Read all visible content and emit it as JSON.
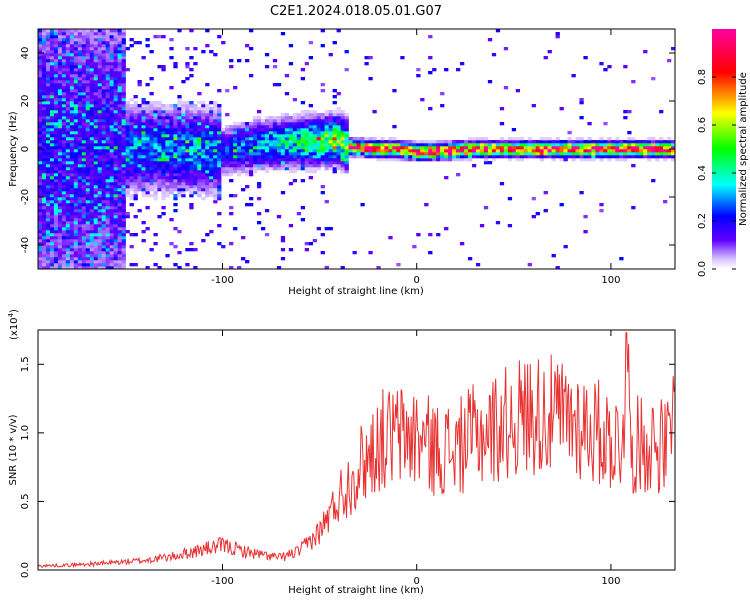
{
  "title": "C2E1.2024.018.05.01.G07",
  "chart_data": [
    {
      "type": "heatmap",
      "xlabel": "Height of straight line (km)",
      "ylabel": "Frequency (Hz)",
      "xlim": [
        -195,
        133
      ],
      "ylim": [
        -50,
        50
      ],
      "xticks": [
        -100,
        0,
        100
      ],
      "yticks": [
        -40,
        -20,
        0,
        20,
        40
      ],
      "colorbar": {
        "label": "Normalized spectral amplitude",
        "range": [
          0,
          1
        ],
        "ticks": [
          "0.0",
          "0.2",
          "0.4",
          "0.6",
          "0.8"
        ],
        "colormap": [
          "#ffffff",
          "#2000ff",
          "#00ffff",
          "#00ff00",
          "#ffff00",
          "#ff0000",
          "#ff00a0"
        ]
      },
      "ridge": {
        "x": [
          -195,
          -150,
          -120,
          -100,
          -80,
          -60,
          -40,
          -35,
          -20,
          -10,
          0,
          10,
          30,
          60,
          100,
          133
        ],
        "y": [
          0,
          0,
          0,
          -1,
          2,
          3,
          4,
          1,
          0,
          0,
          -1,
          -1,
          0,
          0,
          0,
          0
        ]
      }
    },
    {
      "type": "line",
      "xlabel": "Height of straight line (km)",
      "ylabel": "SNR (10 * v/v)",
      "yexp": "(x10",
      "yexp_power": "4",
      "yexp_close": ")",
      "xlim": [
        -195,
        133
      ],
      "ylim": [
        0,
        17500
      ],
      "xticks": [
        -100,
        0,
        100
      ],
      "yticks": [
        0.0,
        0.5,
        1.0,
        1.5
      ],
      "yticklabels": [
        "0.0",
        "0.5",
        "1.0",
        "1.5"
      ],
      "color": "#e83232",
      "series": [
        {
          "x": [
            -195,
            -180,
            -160,
            -140,
            -125,
            -110,
            -100,
            -90,
            -80,
            -70,
            -60,
            -50,
            -45,
            -40,
            -35,
            -30,
            -25,
            -20,
            -10,
            0,
            10,
            20,
            30,
            40,
            50,
            60,
            70,
            80,
            90,
            100,
            106,
            108,
            110,
            120,
            130,
            133
          ],
          "y": [
            300,
            350,
            500,
            700,
            1000,
            1500,
            1800,
            1400,
            1100,
            900,
            1400,
            2800,
            4000,
            5300,
            6300,
            7500,
            8200,
            9400,
            9800,
            9700,
            8800,
            8800,
            9800,
            10300,
            11000,
            11500,
            11200,
            11000,
            10300,
            9500,
            9200,
            17300,
            9000,
            9300,
            9000,
            12000
          ]
        }
      ]
    }
  ]
}
